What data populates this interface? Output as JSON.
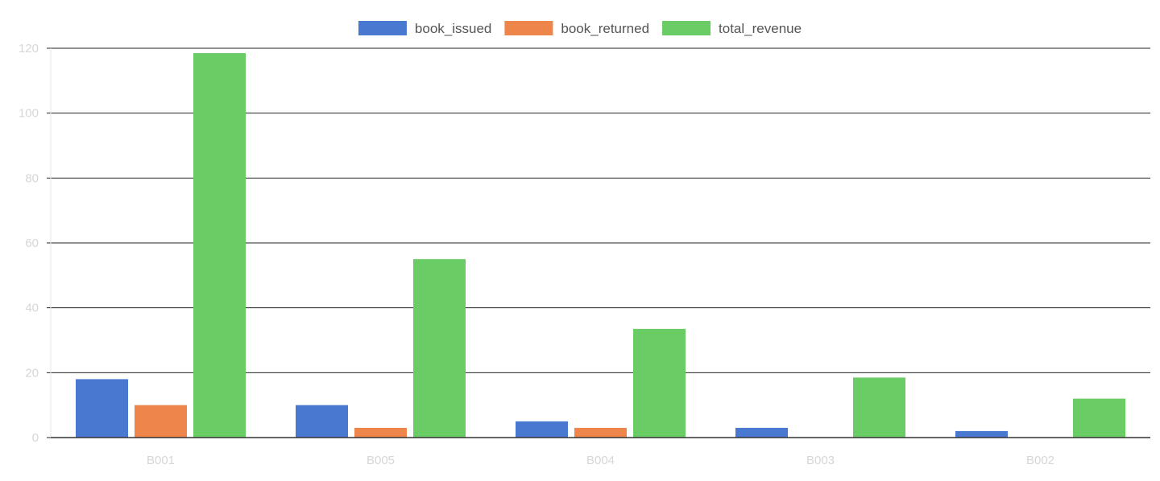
{
  "chart_data": {
    "type": "bar",
    "categories": [
      "B001",
      "B005",
      "B004",
      "B003",
      "B002"
    ],
    "series": [
      {
        "name": "book_issued",
        "color": "#4878d0",
        "values": [
          18,
          10,
          5,
          3,
          2
        ]
      },
      {
        "name": "book_returned",
        "color": "#ee854a",
        "values": [
          10,
          3,
          3,
          0,
          0
        ]
      },
      {
        "name": "total_revenue",
        "color": "#6acc64",
        "values": [
          118.5,
          55,
          33.5,
          18.5,
          12
        ]
      }
    ],
    "ylim": [
      0,
      120
    ],
    "yticks": [
      0,
      20,
      40,
      60,
      80,
      100,
      120
    ],
    "grid": true,
    "legend": "top-center"
  }
}
